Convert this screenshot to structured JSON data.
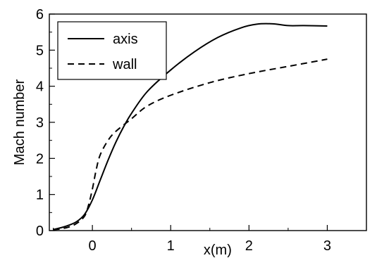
{
  "chart_data": {
    "type": "line",
    "xlabel": "x(m)",
    "ylabel": "Mach number",
    "xlim": [
      -0.55,
      3.5
    ],
    "ylim": [
      0,
      6
    ],
    "x_ticks": [
      0,
      1,
      2,
      3
    ],
    "y_ticks": [
      0,
      1,
      2,
      3,
      4,
      5,
      6
    ],
    "grid": false,
    "legend": {
      "position": "top-left"
    },
    "series": [
      {
        "name": "axis",
        "style": "solid",
        "color": "#000000",
        "x": [
          -0.5,
          -0.4,
          -0.3,
          -0.2,
          -0.1,
          0.0,
          0.1,
          0.2,
          0.3,
          0.4,
          0.5,
          0.7,
          1.0,
          1.3,
          1.6,
          1.9,
          2.1,
          2.3,
          2.5,
          2.7,
          3.0
        ],
        "y": [
          0.03,
          0.08,
          0.15,
          0.25,
          0.45,
          0.85,
          1.4,
          1.95,
          2.45,
          2.88,
          3.25,
          3.85,
          4.45,
          4.95,
          5.35,
          5.62,
          5.72,
          5.73,
          5.68,
          5.68,
          5.67
        ]
      },
      {
        "name": "wall",
        "style": "dashed",
        "color": "#000000",
        "x": [
          -0.5,
          -0.4,
          -0.3,
          -0.2,
          -0.1,
          -0.05,
          0.0,
          0.05,
          0.1,
          0.2,
          0.3,
          0.5,
          0.7,
          1.0,
          1.5,
          2.0,
          2.5,
          3.0
        ],
        "y": [
          0.02,
          0.05,
          0.1,
          0.2,
          0.4,
          0.7,
          1.15,
          1.7,
          2.1,
          2.5,
          2.75,
          3.1,
          3.45,
          3.75,
          4.1,
          4.35,
          4.55,
          4.75
        ]
      }
    ]
  }
}
